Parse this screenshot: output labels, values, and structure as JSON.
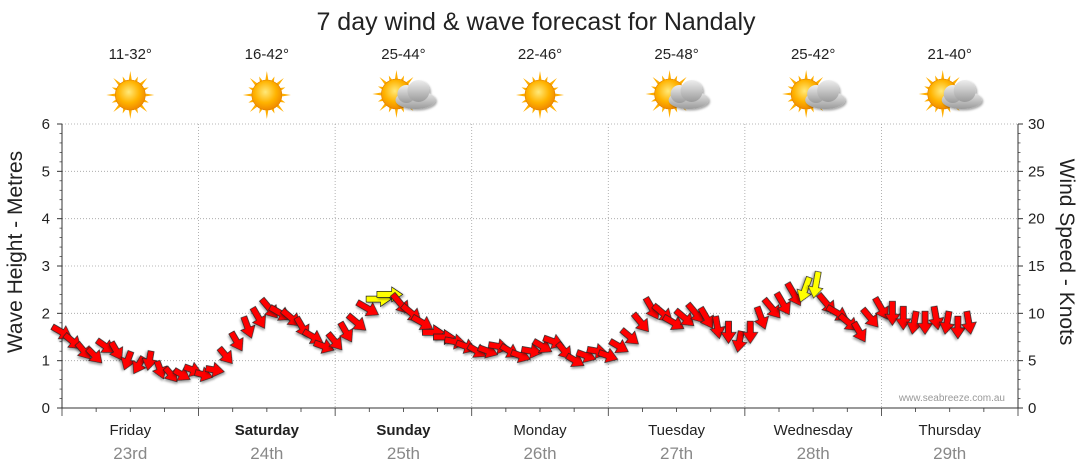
{
  "chart_data": {
    "type": "line",
    "title": "7 day wind & wave forecast for Nandaly",
    "ylabel_left": "Wave Height - Metres",
    "ylabel_right": "Wind Speed - Knots",
    "ylim_left": [
      0,
      6
    ],
    "ylim_right": [
      0,
      30
    ],
    "left_ticks": [
      "0",
      "1",
      "2",
      "3",
      "4",
      "5",
      "6"
    ],
    "right_ticks": [
      "0",
      "5",
      "10",
      "15",
      "20",
      "25",
      "30"
    ],
    "grid": true,
    "watermark": "www.seabreeze.com.au",
    "days": [
      {
        "name": "Friday",
        "date": "23rd",
        "temp": "11-32°",
        "icon": "sun-icon",
        "bold": false
      },
      {
        "name": "Saturday",
        "date": "24th",
        "temp": "16-42°",
        "icon": "sun-icon",
        "bold": true
      },
      {
        "name": "Sunday",
        "date": "25th",
        "temp": "25-44°",
        "icon": "sun-cloud-icon",
        "bold": true
      },
      {
        "name": "Monday",
        "date": "26th",
        "temp": "22-46°",
        "icon": "sun-icon",
        "bold": false
      },
      {
        "name": "Tuesday",
        "date": "27th",
        "temp": "25-48°",
        "icon": "sun-cloud-icon",
        "bold": false
      },
      {
        "name": "Wednesday",
        "date": "28th",
        "temp": "25-42°",
        "icon": "sun-cloud-icon",
        "bold": false
      },
      {
        "name": "Thursday",
        "date": "29th",
        "temp": "21-40°",
        "icon": "sun-cloud-icon",
        "bold": false
      }
    ],
    "wind_series": {
      "name": "Wind",
      "unit": "knots",
      "points": [
        {
          "t": 0.0,
          "kn": 8.0,
          "dir": 300
        },
        {
          "t": 0.08,
          "kn": 7.0,
          "dir": 310
        },
        {
          "t": 0.16,
          "kn": 6.0,
          "dir": 320
        },
        {
          "t": 0.24,
          "kn": 5.5,
          "dir": 315
        },
        {
          "t": 0.32,
          "kn": 6.5,
          "dir": 305
        },
        {
          "t": 0.4,
          "kn": 6.0,
          "dir": 330
        },
        {
          "t": 0.48,
          "kn": 5.0,
          "dir": 20
        },
        {
          "t": 0.56,
          "kn": 4.5,
          "dir": 30
        },
        {
          "t": 0.64,
          "kn": 5.0,
          "dir": 10
        },
        {
          "t": 0.72,
          "kn": 4.0,
          "dir": 340
        },
        {
          "t": 0.8,
          "kn": 3.5,
          "dir": 320
        },
        {
          "t": 0.88,
          "kn": 3.5,
          "dir": 300
        },
        {
          "t": 0.96,
          "kn": 4.0,
          "dir": 290
        },
        {
          "t": 1.04,
          "kn": 3.5,
          "dir": 285
        },
        {
          "t": 1.12,
          "kn": 4.0,
          "dir": 280
        },
        {
          "t": 1.2,
          "kn": 5.5,
          "dir": 320
        },
        {
          "t": 1.28,
          "kn": 7.0,
          "dir": 330
        },
        {
          "t": 1.36,
          "kn": 8.5,
          "dir": 340
        },
        {
          "t": 1.44,
          "kn": 9.5,
          "dir": 330
        },
        {
          "t": 1.52,
          "kn": 10.5,
          "dir": 320
        },
        {
          "t": 1.6,
          "kn": 10.0,
          "dir": 300
        },
        {
          "t": 1.68,
          "kn": 9.5,
          "dir": 310
        },
        {
          "t": 1.76,
          "kn": 8.5,
          "dir": 330
        },
        {
          "t": 1.84,
          "kn": 7.5,
          "dir": 300
        },
        {
          "t": 1.92,
          "kn": 6.5,
          "dir": 290
        },
        {
          "t": 2.0,
          "kn": 7.0,
          "dir": 320
        },
        {
          "t": 2.08,
          "kn": 8.0,
          "dir": 330
        },
        {
          "t": 2.16,
          "kn": 9.0,
          "dir": 310
        },
        {
          "t": 2.24,
          "kn": 10.5,
          "dir": 300
        },
        {
          "t": 2.32,
          "kn": 11.5,
          "dir": 270,
          "yellow": true
        },
        {
          "t": 2.4,
          "kn": 12.0,
          "dir": 270,
          "yellow": true
        },
        {
          "t": 2.48,
          "kn": 11.0,
          "dir": 320
        },
        {
          "t": 2.56,
          "kn": 10.0,
          "dir": 310
        },
        {
          "t": 2.64,
          "kn": 9.0,
          "dir": 300
        },
        {
          "t": 2.72,
          "kn": 8.0,
          "dir": 270
        },
        {
          "t": 2.8,
          "kn": 7.5,
          "dir": 270
        },
        {
          "t": 2.88,
          "kn": 7.0,
          "dir": 280
        },
        {
          "t": 2.96,
          "kn": 6.5,
          "dir": 290
        },
        {
          "t": 3.04,
          "kn": 6.0,
          "dir": 300
        },
        {
          "t": 3.12,
          "kn": 6.0,
          "dir": 290
        },
        {
          "t": 3.2,
          "kn": 6.5,
          "dir": 280
        },
        {
          "t": 3.28,
          "kn": 6.0,
          "dir": 300
        },
        {
          "t": 3.36,
          "kn": 5.5,
          "dir": 290
        },
        {
          "t": 3.44,
          "kn": 6.0,
          "dir": 280
        },
        {
          "t": 3.52,
          "kn": 6.5,
          "dir": 300
        },
        {
          "t": 3.6,
          "kn": 7.0,
          "dir": 290
        },
        {
          "t": 3.68,
          "kn": 6.0,
          "dir": 320
        },
        {
          "t": 3.76,
          "kn": 5.0,
          "dir": 300
        },
        {
          "t": 3.84,
          "kn": 5.5,
          "dir": 290
        },
        {
          "t": 3.92,
          "kn": 6.0,
          "dir": 280
        },
        {
          "t": 4.0,
          "kn": 5.5,
          "dir": 290
        },
        {
          "t": 4.08,
          "kn": 6.5,
          "dir": 300
        },
        {
          "t": 4.16,
          "kn": 7.5,
          "dir": 310
        },
        {
          "t": 4.24,
          "kn": 9.0,
          "dir": 320
        },
        {
          "t": 4.32,
          "kn": 10.5,
          "dir": 330
        },
        {
          "t": 4.4,
          "kn": 10.0,
          "dir": 310
        },
        {
          "t": 4.48,
          "kn": 9.0,
          "dir": 300
        },
        {
          "t": 4.56,
          "kn": 9.5,
          "dir": 310
        },
        {
          "t": 4.64,
          "kn": 10.0,
          "dir": 320
        },
        {
          "t": 4.72,
          "kn": 9.5,
          "dir": 330
        },
        {
          "t": 4.8,
          "kn": 8.5,
          "dir": 350
        },
        {
          "t": 4.88,
          "kn": 8.0,
          "dir": 0
        },
        {
          "t": 4.96,
          "kn": 7.0,
          "dir": 10
        },
        {
          "t": 5.04,
          "kn": 8.0,
          "dir": 0
        },
        {
          "t": 5.12,
          "kn": 9.5,
          "dir": 340
        },
        {
          "t": 5.2,
          "kn": 10.5,
          "dir": 320
        },
        {
          "t": 5.28,
          "kn": 11.0,
          "dir": 330
        },
        {
          "t": 5.36,
          "kn": 12.0,
          "dir": 330
        },
        {
          "t": 5.44,
          "kn": 12.5,
          "dir": 20,
          "yellow": true
        },
        {
          "t": 5.52,
          "kn": 13.0,
          "dir": 10,
          "yellow": true
        },
        {
          "t": 5.6,
          "kn": 11.0,
          "dir": 320
        },
        {
          "t": 5.68,
          "kn": 10.0,
          "dir": 300
        },
        {
          "t": 5.76,
          "kn": 9.0,
          "dir": 310
        },
        {
          "t": 5.84,
          "kn": 8.0,
          "dir": 330
        },
        {
          "t": 5.92,
          "kn": 9.5,
          "dir": 320
        },
        {
          "t": 6.0,
          "kn": 10.5,
          "dir": 330
        },
        {
          "t": 6.08,
          "kn": 10.0,
          "dir": 0
        },
        {
          "t": 6.16,
          "kn": 9.5,
          "dir": 0
        },
        {
          "t": 6.24,
          "kn": 9.0,
          "dir": 10
        },
        {
          "t": 6.32,
          "kn": 9.0,
          "dir": 0
        },
        {
          "t": 6.4,
          "kn": 9.5,
          "dir": 350
        },
        {
          "t": 6.48,
          "kn": 9.0,
          "dir": 10
        },
        {
          "t": 6.56,
          "kn": 8.5,
          "dir": 0
        },
        {
          "t": 6.64,
          "kn": 9.0,
          "dir": 350
        }
      ]
    }
  },
  "colors": {
    "wind_arrow": "#ff0000",
    "wind_arrow_strong": "#ffff00",
    "grid": "#a0a0a0",
    "axis": "#333333"
  }
}
